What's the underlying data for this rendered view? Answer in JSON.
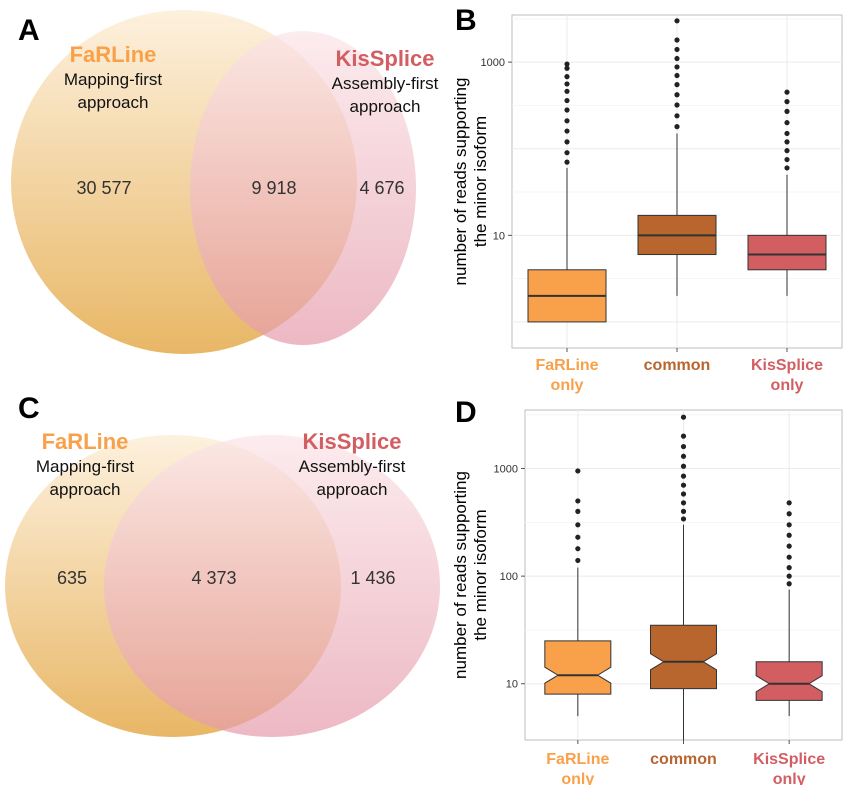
{
  "colors": {
    "farline": "#f9a04a",
    "common": "#b8652e",
    "kissplice": "#d25e62",
    "venn_left": "#f2c177",
    "venn_right": "#efa0b0"
  },
  "panels": {
    "A": {
      "letter": "A",
      "left": {
        "title": "FaRLine",
        "sub1": "Mapping-first",
        "sub2": "approach"
      },
      "right": {
        "title": "KisSplice",
        "sub1": "Assembly-first",
        "sub2": "approach"
      },
      "counts": {
        "left_only": "30 577",
        "common": "9 918",
        "right_only": "4 676"
      }
    },
    "C": {
      "letter": "C",
      "left": {
        "title": "FaRLine",
        "sub1": "Mapping-first",
        "sub2": "approach"
      },
      "right": {
        "title": "KisSplice",
        "sub1": "Assembly-first",
        "sub2": "approach"
      },
      "counts": {
        "left_only": "635",
        "common": "4 373",
        "right_only": "1 436"
      }
    },
    "B": {
      "letter": "B"
    },
    "D": {
      "letter": "D"
    }
  },
  "chart_data": [
    {
      "type": "box",
      "panel": "B",
      "ylabel": [
        "number of reads supporting",
        "the minor isoform"
      ],
      "yscale": "log10",
      "ylim": [
        0.5,
        3500
      ],
      "yticks": [
        10,
        1000
      ],
      "ytick_labels": [
        "10",
        "1000"
      ],
      "categories": [
        "FaRLine only",
        "common",
        "KisSplice only"
      ],
      "category_lines": [
        [
          "FaRLine",
          "only"
        ],
        [
          "common"
        ],
        [
          "KisSplice",
          "only"
        ]
      ],
      "notched": false,
      "boxes": [
        {
          "lower_whisker": 1,
          "q1": 1,
          "median": 2,
          "q3": 4,
          "upper_whisker": 60,
          "outliers": [
            70,
            90,
            120,
            160,
            210,
            280,
            360,
            460,
            560,
            680,
            850,
            950
          ]
        },
        {
          "lower_whisker": 2,
          "q1": 6,
          "median": 10,
          "q3": 17,
          "upper_whisker": 150,
          "outliers": [
            180,
            240,
            320,
            420,
            550,
            700,
            880,
            1100,
            1400,
            1800,
            3000
          ]
        },
        {
          "lower_whisker": 2,
          "q1": 4,
          "median": 6,
          "q3": 10,
          "upper_whisker": 50,
          "outliers": [
            60,
            75,
            95,
            120,
            150,
            200,
            270,
            350,
            450
          ]
        }
      ]
    },
    {
      "type": "box",
      "panel": "D",
      "ylabel": [
        "number of reads supporting",
        "the minor isoform"
      ],
      "yscale": "log10",
      "ylim": [
        3,
        3500
      ],
      "yticks": [
        10,
        100,
        1000
      ],
      "ytick_labels": [
        "10",
        "100",
        "1000"
      ],
      "categories": [
        "FaRLine only",
        "common",
        "KisSplice only"
      ],
      "category_lines": [
        [
          "FaRLine",
          "only"
        ],
        [
          "common"
        ],
        [
          "KisSplice",
          "only"
        ]
      ],
      "notched": true,
      "boxes": [
        {
          "lower_whisker": 5,
          "q1": 8,
          "median": 12,
          "q3": 25,
          "upper_whisker": 120,
          "outliers": [
            140,
            180,
            230,
            300,
            400,
            500,
            950
          ]
        },
        {
          "lower_whisker": 3,
          "q1": 9,
          "median": 16,
          "q3": 35,
          "upper_whisker": 300,
          "outliers": [
            340,
            400,
            480,
            580,
            700,
            850,
            1050,
            1300,
            1600,
            2000,
            3000
          ]
        },
        {
          "lower_whisker": 5,
          "q1": 7,
          "median": 10,
          "q3": 16,
          "upper_whisker": 75,
          "outliers": [
            85,
            100,
            120,
            150,
            190,
            240,
            300,
            380,
            480
          ]
        }
      ]
    }
  ]
}
